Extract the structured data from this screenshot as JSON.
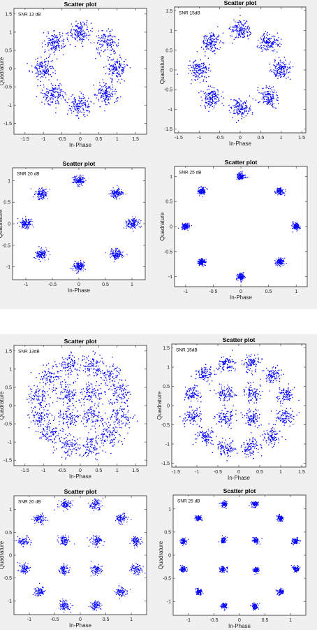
{
  "chart_data": [
    {
      "type": "scatter",
      "title": "Scatter plot",
      "annotation": "SNR 13 dB",
      "xlabel": "In-Phase",
      "ylabel": "Quadrature",
      "xlim": [
        -1.8,
        1.8
      ],
      "ylim": [
        -1.8,
        1.65
      ],
      "xticks": [
        "-1.5",
        "-1",
        "-0.5",
        "0",
        "0.5",
        "1",
        "1.5"
      ],
      "xtick_values": [
        -1.5,
        -1,
        -0.5,
        0,
        0.5,
        1,
        1.5
      ],
      "yticks": [
        "1.5",
        "1",
        "0.5",
        "0",
        "-0.5",
        "-1",
        "-1.5"
      ],
      "ytick_values": [
        1.5,
        1,
        0.5,
        0,
        -0.5,
        -1,
        -1.5
      ],
      "constellation": "8-PSK",
      "spread": 0.15,
      "color": "#0000ff"
    },
    {
      "type": "scatter",
      "title": "Scatter plot",
      "annotation": "SNR 15dB",
      "xlabel": "In-Phase",
      "ylabel": "Quadrature",
      "xlim": [
        -1.6,
        1.6
      ],
      "ylim": [
        -1.6,
        1.6
      ],
      "xticks": [
        "-1.5",
        "-1",
        "-0.5",
        "0",
        "0.5",
        "1",
        "1.5"
      ],
      "xtick_values": [
        -1.5,
        -1,
        -0.5,
        0,
        0.5,
        1,
        1.5
      ],
      "yticks": [
        "1.5",
        "1",
        "0.5",
        "0",
        "-0.5",
        "-1",
        "-1.5"
      ],
      "ytick_values": [
        1.5,
        1,
        0.5,
        0,
        -0.5,
        -1,
        -1.5
      ],
      "constellation": "8-PSK",
      "spread": 0.12,
      "color": "#0000ff"
    },
    {
      "type": "scatter",
      "title": "Scatter plot",
      "annotation": "SNR 20 dB",
      "xlabel": "In-Phase",
      "ylabel": "Quadrature",
      "xlim": [
        -1.25,
        1.25
      ],
      "ylim": [
        -1.3,
        1.3
      ],
      "xticks": [
        "-1",
        "-0.5",
        "0",
        "0.5",
        "1"
      ],
      "xtick_values": [
        -1,
        -0.5,
        0,
        0.5,
        1
      ],
      "yticks": [
        "1",
        "0.5",
        "0",
        "-0.5",
        "-1"
      ],
      "ytick_values": [
        1,
        0.5,
        0,
        -0.5,
        -1
      ],
      "constellation": "8-PSK",
      "spread": 0.06,
      "color": "#0000ff"
    },
    {
      "type": "scatter",
      "title": "Scatter plot",
      "annotation": "SNR 25 dB",
      "xlabel": "In-Phase",
      "ylabel": "Quadrature",
      "xlim": [
        -1.2,
        1.2
      ],
      "ylim": [
        -1.2,
        1.2
      ],
      "xticks": [
        "-1",
        "-0.5",
        "0",
        "0.5",
        "1"
      ],
      "xtick_values": [
        -1,
        -0.5,
        0,
        0.5,
        1
      ],
      "yticks": [
        "1",
        "0.5",
        "0",
        "-0.5",
        "-1"
      ],
      "ytick_values": [
        1,
        0.5,
        0,
        -0.5,
        -1
      ],
      "constellation": "8-PSK",
      "spread": 0.035,
      "color": "#0000ff"
    },
    {
      "type": "scatter",
      "title": "Scatter plot",
      "annotation": "SNR 13dB",
      "xlabel": "In-Phase",
      "ylabel": "Quadrature",
      "xlim": [
        -1.8,
        1.8
      ],
      "ylim": [
        -1.65,
        1.65
      ],
      "xticks": [
        "-1.5",
        "-1",
        "-0.5",
        "0",
        "0.5",
        "1",
        "1.5"
      ],
      "xtick_values": [
        -1.5,
        -1,
        -0.5,
        0,
        0.5,
        1,
        1.5
      ],
      "yticks": [
        "1.5",
        "1",
        "0.5",
        "0",
        "-0.5",
        "-1",
        "-1.5"
      ],
      "ytick_values": [
        1.5,
        1,
        0.5,
        0,
        -0.5,
        -1,
        -1.5
      ],
      "constellation": "16-APSK",
      "spread": 0.16,
      "color": "#0000ff"
    },
    {
      "type": "scatter",
      "title": "Scatter plot",
      "annotation": "SNR 15dB",
      "xlabel": "In-Phase",
      "ylabel": "Quadrature",
      "xlim": [
        -1.6,
        1.6
      ],
      "ylim": [
        -1.6,
        1.6
      ],
      "xticks": [
        "-1.5",
        "-1",
        "-0.5",
        "0",
        "0.5",
        "1",
        "1.5"
      ],
      "xtick_values": [
        -1.5,
        -1,
        -0.5,
        0,
        0.5,
        1,
        1.5
      ],
      "yticks": [
        "1.5",
        "1",
        "0.5",
        "0",
        "-0.5",
        "-1",
        "-1.5"
      ],
      "ytick_values": [
        1.5,
        1,
        0.5,
        0,
        -0.5,
        -1,
        -1.5
      ],
      "constellation": "16-APSK",
      "spread": 0.11,
      "color": "#0000ff"
    },
    {
      "type": "scatter",
      "title": "Scatter plot",
      "annotation": "SNR 20 dB",
      "xlabel": "In-Phase",
      "ylabel": "Quadrature",
      "xlim": [
        -1.3,
        1.3
      ],
      "ylim": [
        -1.3,
        1.3
      ],
      "xticks": [
        "-1",
        "-0.5",
        "0",
        "0.5",
        "1"
      ],
      "xtick_values": [
        -1,
        -0.5,
        0,
        0.5,
        1
      ],
      "yticks": [
        "1",
        "0.5",
        "0",
        "-0.5",
        "-1"
      ],
      "ytick_values": [
        1,
        0.5,
        0,
        -0.5,
        -1
      ],
      "constellation": "16-APSK",
      "spread": 0.055,
      "color": "#0000ff"
    },
    {
      "type": "scatter",
      "title": "Scatter plot",
      "annotation": "SNR 25 dB",
      "xlabel": "In-Phase",
      "ylabel": "Quadrature",
      "xlim": [
        -1.3,
        1.3
      ],
      "ylim": [
        -1.3,
        1.3
      ],
      "xticks": [
        "-1",
        "-0.5",
        "0",
        "0.5",
        "1"
      ],
      "xtick_values": [
        -1,
        -0.5,
        0,
        0.5,
        1
      ],
      "yticks": [
        "1",
        "0.5",
        "0",
        "-0.5",
        "-1"
      ],
      "ytick_values": [
        1,
        0.5,
        0,
        -0.5,
        -1
      ],
      "constellation": "16-APSK",
      "spread": 0.032,
      "color": "#0000ff"
    }
  ]
}
